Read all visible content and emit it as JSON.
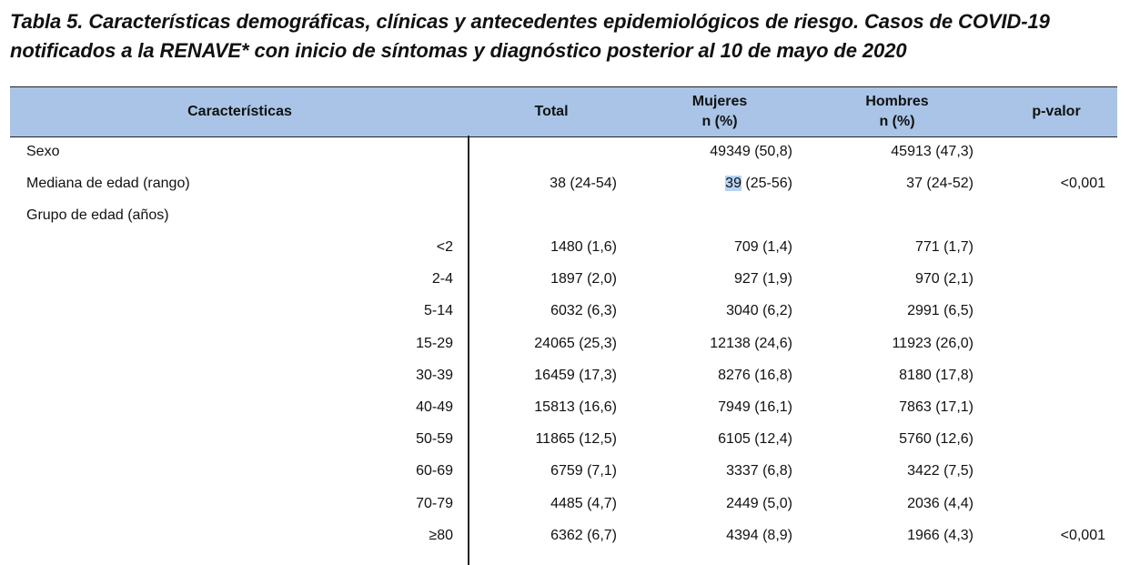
{
  "title": "Tabla 5. Características demográficas, clínicas y antecedentes epidemiológicos de riesgo. Casos de COVID-19 notificados a la RENAVE* con inicio de síntomas y diagnóstico posterior al 10 de mayo de 2020",
  "header": {
    "caracteristicas": "Características",
    "total": "Total",
    "mujeres_line1": "Mujeres",
    "mujeres_line2": "n (%)",
    "hombres_line1": "Hombres",
    "hombres_line2": "n (%)",
    "pvalor": "p-valor"
  },
  "rows": {
    "sexo": {
      "label": "Sexo",
      "mujeres": "49349 (50,8)",
      "hombres": "45913 (47,3)"
    },
    "mediana": {
      "label": "Mediana de edad (rango)",
      "total": "38 (24-54)",
      "mujeres_highlight": "39",
      "mujeres_rest": " (25-56)",
      "hombres": "37 (24-52)",
      "pvalor": "<0,001"
    },
    "grupo": {
      "label": "Grupo de edad (años)"
    },
    "age_groups": [
      {
        "label": "<2",
        "total": "1480 (1,6)",
        "mujeres": "709 (1,4)",
        "hombres": "771 (1,7)",
        "pvalor": ""
      },
      {
        "label": "2-4",
        "total": "1897 (2,0)",
        "mujeres": "927 (1,9)",
        "hombres": "970 (2,1)",
        "pvalor": ""
      },
      {
        "label": "5-14",
        "total": "6032 (6,3)",
        "mujeres": "3040 (6,2)",
        "hombres": "2991 (6,5)",
        "pvalor": ""
      },
      {
        "label": "15-29",
        "total": "24065 (25,3)",
        "mujeres": "12138 (24,6)",
        "hombres": "11923 (26,0)",
        "pvalor": ""
      },
      {
        "label": "30-39",
        "total": "16459 (17,3)",
        "mujeres": "8276 (16,8)",
        "hombres": "8180 (17,8)",
        "pvalor": ""
      },
      {
        "label": "40-49",
        "total": "15813 (16,6)",
        "mujeres": "7949 (16,1)",
        "hombres": "7863 (17,1)",
        "pvalor": ""
      },
      {
        "label": "50-59",
        "total": "11865 (12,5)",
        "mujeres": "6105 (12,4)",
        "hombres": "5760 (12,6)",
        "pvalor": ""
      },
      {
        "label": "60-69",
        "total": "6759 (7,1)",
        "mujeres": "3337 (6,8)",
        "hombres": "3422 (7,5)",
        "pvalor": ""
      },
      {
        "label": "70-79",
        "total": "4485 (4,7)",
        "mujeres": "2449 (5,0)",
        "hombres": "2036 (4,4)",
        "pvalor": ""
      },
      {
        "label": "≥80",
        "total": "6362 (6,7)",
        "mujeres": "4394 (8,9)",
        "hombres": "1966 (4,3)",
        "pvalor": "<0,001"
      }
    ]
  }
}
